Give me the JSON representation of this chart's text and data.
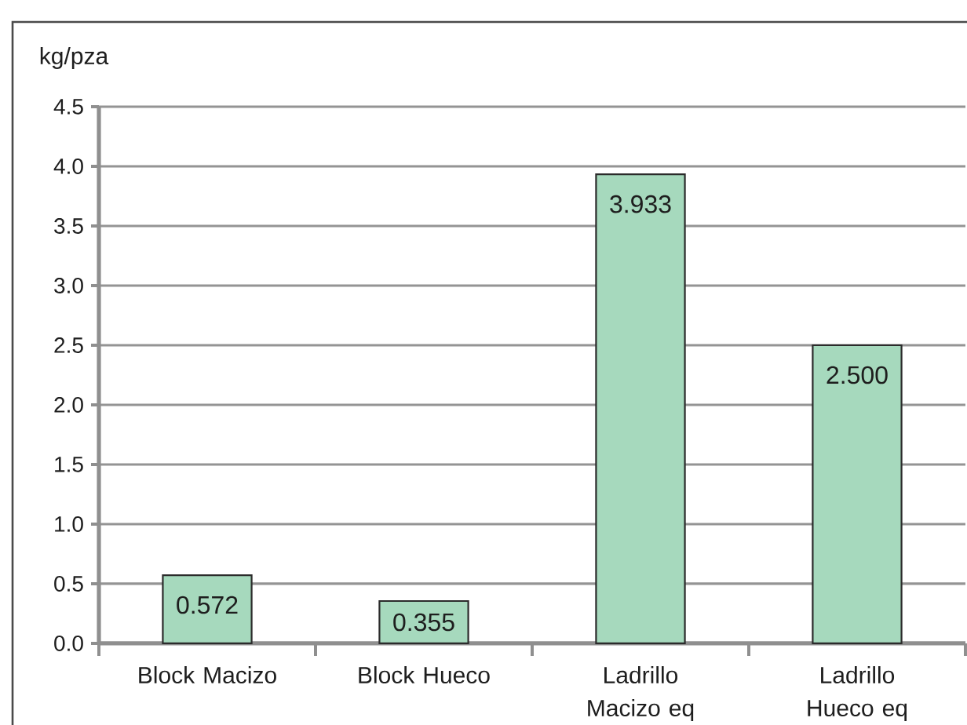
{
  "chart_data": {
    "type": "bar",
    "ylabel": "kg/pza",
    "categories": [
      "Block Macizo",
      "Block Hueco",
      "Ladrillo Macizo eq",
      "Ladrillo Hueco eq"
    ],
    "values": [
      0.572,
      0.355,
      3.933,
      2.5
    ],
    "value_labels": [
      "0.572",
      "0.355",
      "3.933",
      "2.500"
    ],
    "color": "#a6d9bd",
    "ylim": [
      0,
      4.5
    ],
    "yticks": [
      {
        "value": 0,
        "label": "0.0"
      },
      0.5,
      {
        "value": 1,
        "label": "1.0"
      },
      1.5,
      {
        "value": 2,
        "label": "2.0"
      },
      2.5,
      {
        "value": 3,
        "label": "3.0"
      },
      3.5,
      {
        "value": 4,
        "label": "4.0"
      },
      4.5
    ],
    "grid": "y"
  }
}
